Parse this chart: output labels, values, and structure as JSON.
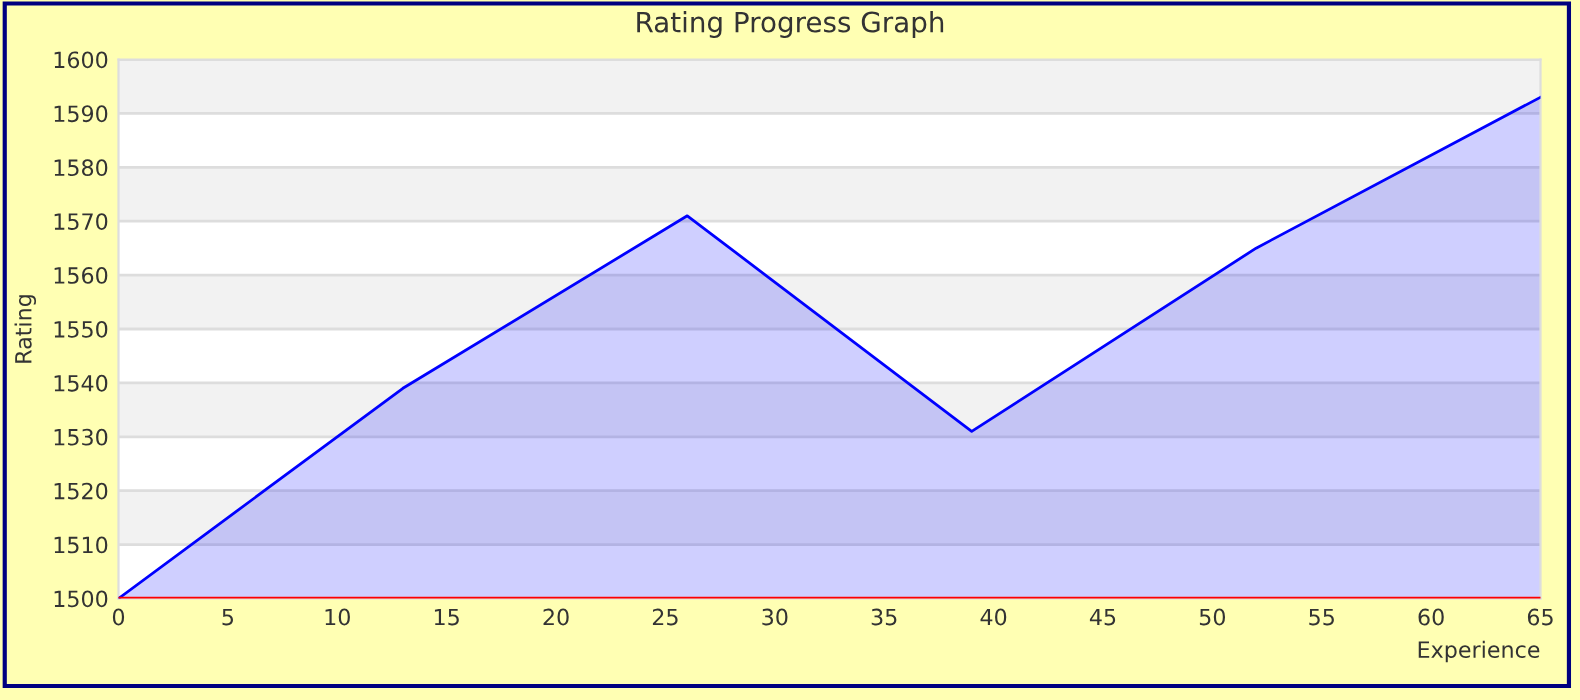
{
  "chart_data": {
    "type": "area",
    "title": "Rating Progress Graph",
    "xlabel": "Experience",
    "ylabel": "Rating",
    "x": [
      0,
      13,
      26,
      39,
      52,
      65
    ],
    "series": [
      {
        "color": "#0000ff",
        "values": [
          1500,
          1539,
          1571,
          1531,
          1565,
          1593
        ]
      }
    ],
    "xlim": [
      0,
      65
    ],
    "xticks": [
      0,
      5,
      10,
      15,
      20,
      25,
      30,
      35,
      40,
      45,
      50,
      55,
      60,
      65
    ],
    "ylim": [
      1500,
      1600
    ],
    "yticks": [
      1500,
      1510,
      1520,
      1530,
      1540,
      1550,
      1560,
      1570,
      1580,
      1590,
      1600
    ],
    "grid": "y",
    "legend": false,
    "marker": "none",
    "line_style": "solid",
    "ref_lines": [
      {
        "axis": "y",
        "value": 1500,
        "color": "#ff0000"
      }
    ],
    "bands": [
      {
        "axis": "y",
        "from": 1590,
        "to": 1600,
        "color": "#f2f2f2"
      },
      {
        "axis": "y",
        "from": 1570,
        "to": 1580,
        "color": "#f2f2f2"
      },
      {
        "axis": "y",
        "from": 1550,
        "to": 1560,
        "color": "#f2f2f2"
      },
      {
        "axis": "y",
        "from": 1530,
        "to": 1540,
        "color": "#f2f2f2"
      },
      {
        "axis": "y",
        "from": 1510,
        "to": 1520,
        "color": "#f2f2f2"
      }
    ]
  }
}
